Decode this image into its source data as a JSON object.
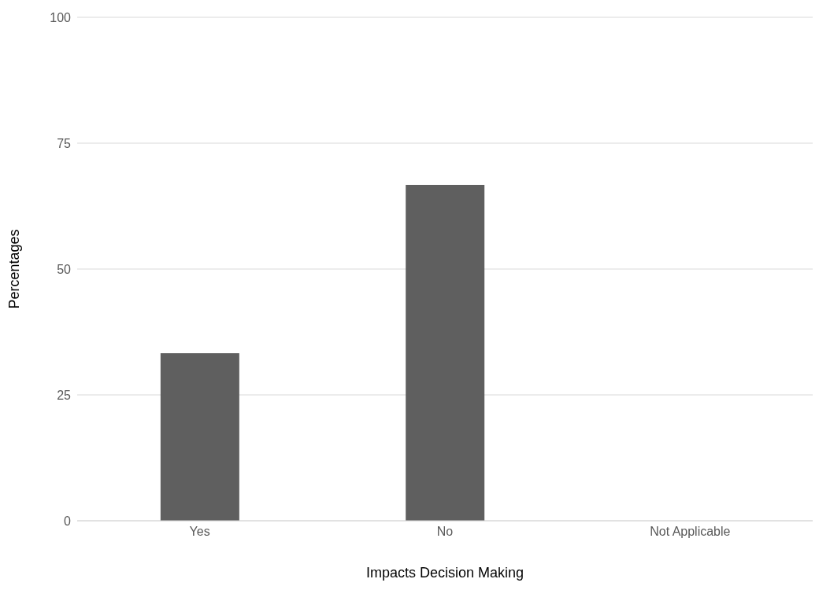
{
  "chart_data": {
    "type": "bar",
    "categories": [
      "Yes",
      "No",
      "Not Applicable"
    ],
    "values": [
      33.3,
      66.7,
      0
    ],
    "color": "#5f5f5f",
    "ylim": [
      0,
      100
    ],
    "yticks": [
      0,
      25,
      50,
      75,
      100
    ],
    "grid": "y",
    "xlabel": "Impacts Decision Making",
    "ylabel": "Percentages"
  }
}
